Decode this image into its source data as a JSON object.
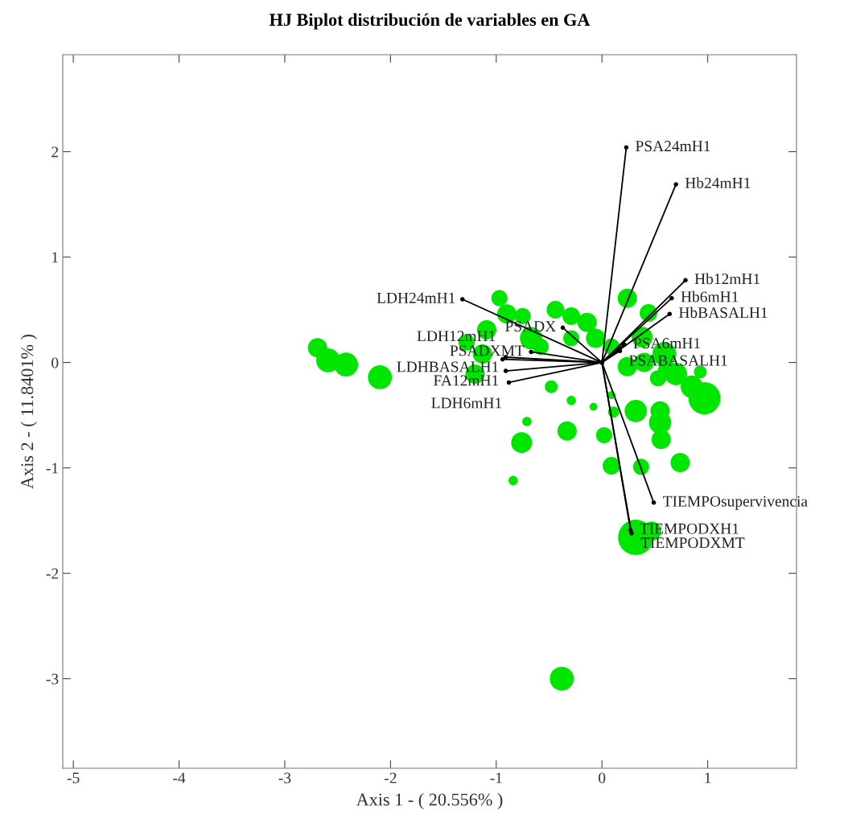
{
  "chart_data": {
    "type": "bubble",
    "title": "HJ Biplot distribución de variables en GA",
    "xlabel": "Axis 1 - ( 20.556% )",
    "ylabel": "Axis 2 - ( 11.8401% )",
    "xlim": [
      -5.1,
      1.84
    ],
    "ylim": [
      -3.85,
      2.92
    ],
    "xticks": [
      -5,
      -4,
      -3,
      -2,
      -1,
      0,
      1
    ],
    "yticks": [
      -3,
      -2,
      -1,
      0,
      1,
      2
    ],
    "grid": false,
    "legend": false,
    "marker": "circle",
    "series": [
      {
        "color": "#00e600",
        "x": [
          -2.69,
          -2.59,
          -2.42,
          -2.1,
          -0.38,
          -0.97,
          -1.09,
          -0.9,
          -0.75,
          -0.67,
          -0.44,
          -0.29,
          -0.58,
          -1.13,
          -1.28,
          -1.2,
          -0.48,
          -0.29,
          -0.71,
          -0.76,
          -0.84,
          -0.33,
          -0.08,
          0.09,
          0.11,
          0.02,
          0.32,
          0.55,
          0.56,
          0.55,
          0.09,
          0.37,
          0.74,
          0.24,
          0.44,
          0.38,
          0.7,
          0.85,
          0.97,
          0.93,
          0.59,
          0.4,
          0.62,
          0.24,
          0.09,
          -0.06,
          -0.14,
          -0.29,
          0.32,
          0.47,
          0.53
        ],
        "values": [
          0.14,
          0.02,
          -0.02,
          -0.14,
          -3.0,
          0.61,
          0.31,
          0.46,
          0.44,
          0.23,
          0.5,
          0.44,
          0.15,
          0.08,
          0.19,
          -0.11,
          -0.23,
          -0.36,
          -0.56,
          -0.76,
          -1.12,
          -0.65,
          -0.42,
          -0.31,
          -0.47,
          -0.69,
          -0.46,
          -0.46,
          -0.73,
          -0.57,
          -0.98,
          -0.99,
          -0.95,
          0.61,
          0.47,
          0.24,
          -0.11,
          -0.23,
          -0.34,
          -0.09,
          0.08,
          0.0,
          -0.08,
          -0.04,
          0.15,
          0.23,
          0.38,
          0.23,
          -1.66,
          -1.6,
          -0.15
        ],
        "sizes": [
          0.3,
          0.46,
          0.46,
          0.46,
          0.46,
          0.21,
          0.3,
          0.3,
          0.21,
          0.4,
          0.25,
          0.25,
          0.21,
          0.3,
          0.21,
          0.3,
          0.13,
          0.07,
          0.07,
          0.35,
          0.07,
          0.3,
          0.05,
          0.05,
          0.1,
          0.21,
          0.4,
          0.3,
          0.3,
          0.4,
          0.25,
          0.21,
          0.3,
          0.3,
          0.25,
          0.35,
          0.4,
          0.4,
          0.83,
          0.13,
          0.46,
          0.3,
          0.3,
          0.3,
          0.21,
          0.3,
          0.3,
          0.21,
          1,
          0.3,
          0.21
        ]
      },
      {
        "type": "line",
        "name": "PSA24mH1",
        "color": "#000000",
        "x": [
          0,
          0.23
        ],
        "values": [
          0,
          2.04
        ]
      },
      {
        "type": "line",
        "name": "Hb24mH1",
        "color": "#000000",
        "x": [
          0,
          0.7
        ],
        "values": [
          0,
          1.69
        ]
      },
      {
        "type": "line",
        "name": "Hb12mH1",
        "color": "#000000",
        "x": [
          0,
          0.79
        ],
        "values": [
          0,
          0.78
        ]
      },
      {
        "type": "line",
        "name": "Hb6mH1",
        "color": "#000000",
        "x": [
          0,
          0.66
        ],
        "values": [
          0,
          0.61
        ]
      },
      {
        "type": "line",
        "name": "HbBASALH1",
        "color": "#000000",
        "x": [
          0,
          0.64
        ],
        "values": [
          0,
          0.46
        ]
      },
      {
        "type": "line",
        "name": "LDH24mH1",
        "color": "#000000",
        "x": [
          0,
          -1.32
        ],
        "values": [
          0,
          0.6
        ]
      },
      {
        "type": "line",
        "name": "PSADXMT",
        "color": "#000000",
        "x": [
          0,
          -0.67
        ],
        "values": [
          0,
          0.1
        ]
      },
      {
        "type": "line",
        "name": "LDHBASALH1",
        "color": "#000000",
        "x": [
          0,
          -0.91
        ],
        "values": [
          0,
          0.05
        ]
      },
      {
        "type": "line",
        "name": "LDH12mH1",
        "color": "#000000",
        "x": [
          0,
          -0.94
        ],
        "values": [
          0,
          0.03
        ]
      },
      {
        "type": "line",
        "name": "FA12mH1",
        "color": "#000000",
        "x": [
          0,
          -0.91
        ],
        "values": [
          0,
          -0.08
        ]
      },
      {
        "type": "line",
        "name": "LDH6mH1",
        "color": "#000000",
        "x": [
          0,
          -0.88
        ],
        "values": [
          0,
          -0.19
        ]
      },
      {
        "type": "line",
        "name": "PSADX",
        "color": "#000000",
        "x": [
          0,
          -0.37
        ],
        "values": [
          0,
          0.33
        ]
      },
      {
        "type": "line",
        "name": "PSABASALH1",
        "color": "#000000",
        "x": [
          0,
          0.17
        ],
        "values": [
          0,
          0.11
        ]
      },
      {
        "type": "line",
        "name": "PSA6mH1",
        "color": "#000000",
        "x": [
          0,
          0.21
        ],
        "values": [
          0,
          0.17
        ]
      },
      {
        "type": "line",
        "name": "TIEMPOsupervivencia",
        "color": "#000000",
        "x": [
          0,
          0.49
        ],
        "values": [
          0,
          -1.33
        ]
      },
      {
        "type": "line",
        "name": "TIEMPODXMT",
        "color": "#000000",
        "x": [
          0,
          0.28
        ],
        "values": [
          0,
          -1.62
        ]
      },
      {
        "type": "line",
        "name": "TIEMPODXH1",
        "color": "#000000",
        "x": [
          0,
          0.27
        ],
        "values": [
          0,
          -1.59
        ]
      }
    ]
  }
}
